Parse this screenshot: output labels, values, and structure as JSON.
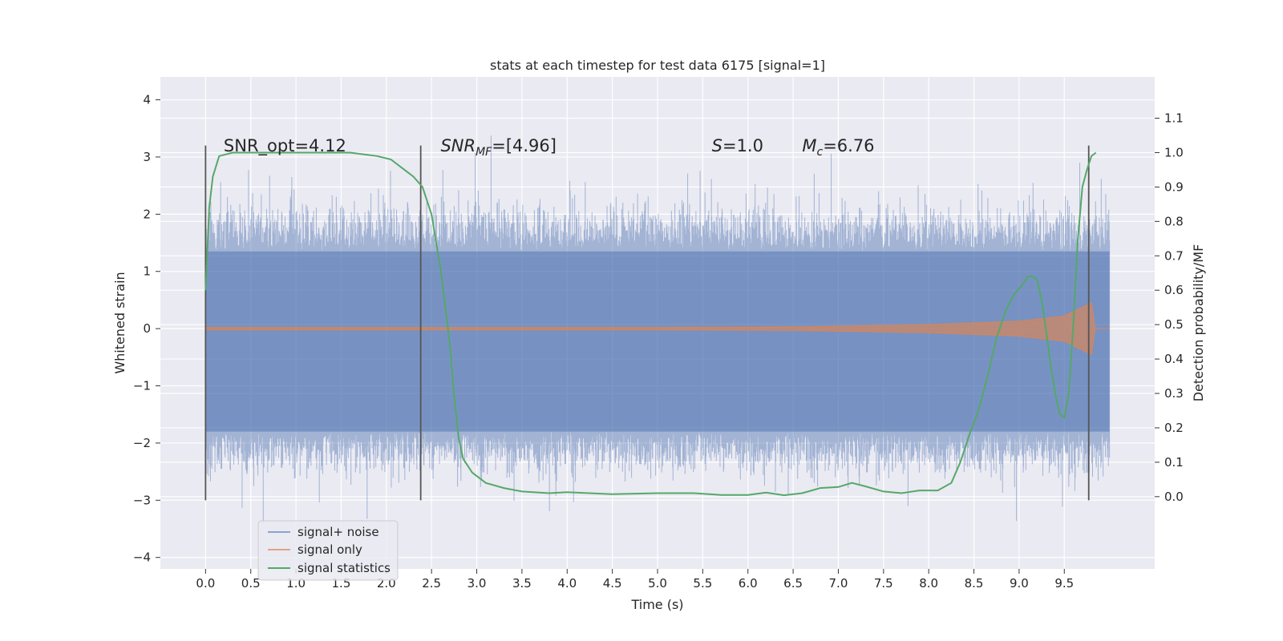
{
  "chart_data": {
    "type": "line",
    "title": "stats at each timestep for test data 6175 [signal=1]",
    "xlabel": "Time (s)",
    "ylabel": "Whitened strain",
    "y2label": "Detection probability/MF",
    "xlim": [
      -0.5,
      10.5
    ],
    "ylim": [
      -4.2,
      4.4
    ],
    "y2lim": [
      -0.21,
      1.22
    ],
    "xticks": [
      0.0,
      0.5,
      1.0,
      1.5,
      2.0,
      2.5,
      3.0,
      3.5,
      4.0,
      4.5,
      5.0,
      5.5,
      6.0,
      6.5,
      7.0,
      7.5,
      8.0,
      8.5,
      9.0,
      9.5
    ],
    "xtick_labels": [
      "0.0",
      "0.5",
      "1.0",
      "1.5",
      "2.0",
      "2.5",
      "3.0",
      "3.5",
      "4.0",
      "4.5",
      "5.0",
      "5.5",
      "6.0",
      "6.5",
      "7.0",
      "7.5",
      "8.0",
      "8.5",
      "9.0",
      "9.5"
    ],
    "yticks": [
      -4,
      -3,
      -2,
      -1,
      0,
      1,
      2,
      3,
      4
    ],
    "ytick_labels": [
      "−4",
      "−3",
      "−2",
      "−1",
      "0",
      "1",
      "2",
      "3",
      "4"
    ],
    "y2ticks": [
      0.0,
      0.1,
      0.2,
      0.3,
      0.4,
      0.5,
      0.6,
      0.7,
      0.8,
      0.9,
      1.0,
      1.1
    ],
    "y2tick_labels": [
      "0.0",
      "0.1",
      "0.2",
      "0.3",
      "0.4",
      "0.5",
      "0.6",
      "0.7",
      "0.8",
      "0.9",
      "1.0",
      "1.1"
    ],
    "grid": true,
    "legend_position": "lower-left",
    "colors": {
      "background": "#eaeaf2",
      "grid": "#ffffff",
      "noise": "#4c72b0",
      "signal": "#dd8452",
      "statistics": "#55a868",
      "vline": "#555555"
    },
    "series": [
      {
        "name": "signal+ noise",
        "kind": "noise",
        "x_range": [
          0.0,
          10.0
        ],
        "envelope_max": 4.05,
        "envelope_min": -3.85,
        "core_band": [
          -1.8,
          1.35
        ]
      },
      {
        "name": "signal only",
        "kind": "chirp",
        "x_range": [
          0.0,
          10.0
        ],
        "amplitude_points": [
          [
            0.0,
            0.02
          ],
          [
            5.0,
            0.02
          ],
          [
            6.5,
            0.03
          ],
          [
            8.0,
            0.07
          ],
          [
            9.0,
            0.13
          ],
          [
            9.5,
            0.22
          ],
          [
            9.8,
            0.45
          ],
          [
            9.84,
            0.0
          ]
        ]
      },
      {
        "name": "signal statistics",
        "kind": "probability",
        "points": [
          [
            0.0,
            0.6
          ],
          [
            0.04,
            0.84
          ],
          [
            0.08,
            0.93
          ],
          [
            0.15,
            0.99
          ],
          [
            0.3,
            1.0
          ],
          [
            1.0,
            1.0
          ],
          [
            1.6,
            1.0
          ],
          [
            1.9,
            0.99
          ],
          [
            2.05,
            0.98
          ],
          [
            2.2,
            0.95
          ],
          [
            2.3,
            0.93
          ],
          [
            2.4,
            0.9
          ],
          [
            2.5,
            0.82
          ],
          [
            2.6,
            0.66
          ],
          [
            2.7,
            0.45
          ],
          [
            2.75,
            0.29
          ],
          [
            2.8,
            0.17
          ],
          [
            2.85,
            0.11
          ],
          [
            2.95,
            0.07
          ],
          [
            3.1,
            0.04
          ],
          [
            3.3,
            0.025
          ],
          [
            3.5,
            0.015
          ],
          [
            3.8,
            0.01
          ],
          [
            4.0,
            0.013
          ],
          [
            4.5,
            0.007
          ],
          [
            5.0,
            0.01
          ],
          [
            5.4,
            0.01
          ],
          [
            5.7,
            0.005
          ],
          [
            6.0,
            0.005
          ],
          [
            6.2,
            0.012
          ],
          [
            6.4,
            0.004
          ],
          [
            6.6,
            0.01
          ],
          [
            6.8,
            0.025
          ],
          [
            7.0,
            0.028
          ],
          [
            7.15,
            0.04
          ],
          [
            7.3,
            0.03
          ],
          [
            7.5,
            0.015
          ],
          [
            7.7,
            0.01
          ],
          [
            7.9,
            0.018
          ],
          [
            8.1,
            0.018
          ],
          [
            8.25,
            0.04
          ],
          [
            8.35,
            0.1
          ],
          [
            8.45,
            0.18
          ],
          [
            8.55,
            0.25
          ],
          [
            8.65,
            0.35
          ],
          [
            8.75,
            0.46
          ],
          [
            8.85,
            0.54
          ],
          [
            8.95,
            0.59
          ],
          [
            9.05,
            0.62
          ],
          [
            9.1,
            0.64
          ],
          [
            9.15,
            0.64
          ],
          [
            9.2,
            0.63
          ],
          [
            9.25,
            0.57
          ],
          [
            9.3,
            0.48
          ],
          [
            9.35,
            0.38
          ],
          [
            9.4,
            0.3
          ],
          [
            9.45,
            0.24
          ],
          [
            9.5,
            0.23
          ],
          [
            9.55,
            0.3
          ],
          [
            9.6,
            0.5
          ],
          [
            9.65,
            0.75
          ],
          [
            9.7,
            0.9
          ],
          [
            9.75,
            0.95
          ],
          [
            9.8,
            0.99
          ],
          [
            9.85,
            1.0
          ]
        ]
      }
    ],
    "vlines": [
      0.0,
      2.38,
      9.77
    ],
    "vline_range": [
      -3.0,
      3.2
    ],
    "annotations": [
      {
        "x": 0.2,
        "y": 3.1,
        "text": "SNR_opt=4.12",
        "italic_part": ""
      },
      {
        "x": 2.6,
        "y": 3.1,
        "text": "=[4.96]",
        "italic_part": "SNR",
        "sub": "MF"
      },
      {
        "x": 5.6,
        "y": 3.1,
        "text": "=1.0",
        "italic_part": "S"
      },
      {
        "x": 6.6,
        "y": 3.1,
        "text": "=6.76",
        "italic_part": "M",
        "sub": "c"
      }
    ]
  }
}
